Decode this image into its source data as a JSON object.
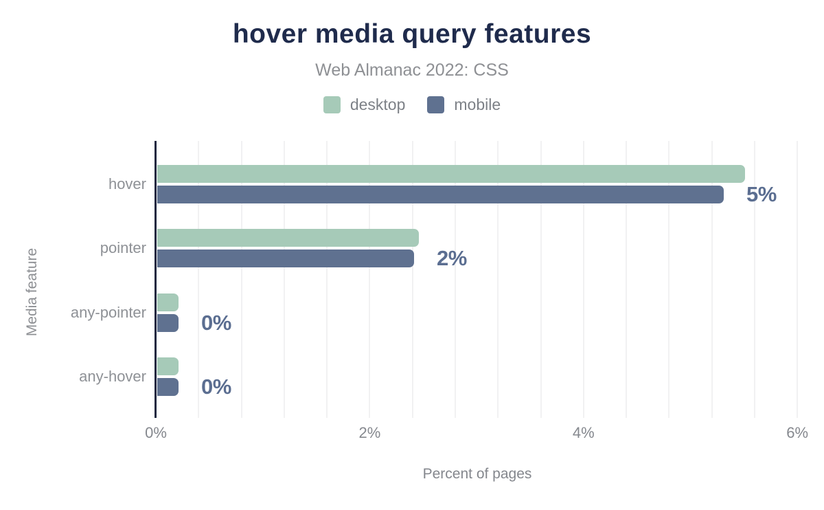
{
  "header": {
    "title": "hover media query features",
    "subtitle": "Web Almanac 2022: CSS"
  },
  "chart_data": {
    "type": "bar",
    "orientation": "horizontal",
    "title": "hover media query features",
    "subtitle": "Web Almanac 2022: CSS",
    "categories": [
      "hover",
      "pointer",
      "any-pointer",
      "any-hover"
    ],
    "series": [
      {
        "name": "desktop",
        "color": "#a6cab8",
        "values": [
          5.5,
          2.45,
          0.2,
          0.2
        ]
      },
      {
        "name": "mobile",
        "color": "#5f7190",
        "values": [
          5.3,
          2.4,
          0.2,
          0.2
        ]
      }
    ],
    "value_labels": [
      "5%",
      "2%",
      "0%",
      "0%"
    ],
    "xlabel": "Percent of pages",
    "ylabel": "Media feature",
    "xlim": [
      0,
      6
    ],
    "xticks": [
      {
        "value": 0,
        "label": "0%"
      },
      {
        "value": 2,
        "label": "2%"
      },
      {
        "value": 4,
        "label": "4%"
      },
      {
        "value": 6,
        "label": "6%"
      }
    ],
    "grid": {
      "visible": true,
      "minor_step_pct": 0.4
    },
    "legend_position": "top"
  },
  "colors": {
    "background": "#ffffff",
    "title": "#1f2b4c",
    "subtitle": "#8e9094",
    "axis_line": "#1b2840",
    "gridline": "#f1f1f2",
    "tick_label": "#85888e",
    "category_label": "#8e9196",
    "value_label": "#5b6e91",
    "legend_label": "#7d8187",
    "desktop_series": "#a6cab8",
    "mobile_series": "#5f7190"
  }
}
